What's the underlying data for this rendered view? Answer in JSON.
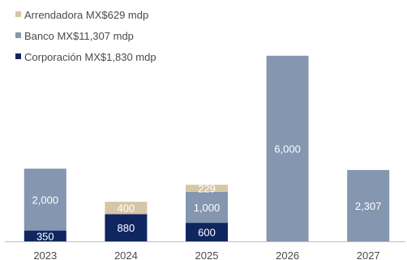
{
  "chart_data": {
    "type": "bar",
    "stacked": true,
    "title": "",
    "xlabel": "",
    "ylabel": "",
    "ylim": [
      0,
      6100
    ],
    "grid": false,
    "legend_position": "top-left",
    "categories": [
      "2023",
      "2024",
      "2025",
      "2026",
      "2027"
    ],
    "series": [
      {
        "name": "Corporación MX$1,830 mdp",
        "color": "#0f2660",
        "label_color": "#ffffff",
        "values": [
          350,
          880,
          600,
          null,
          null
        ],
        "labels": [
          "350",
          "880",
          "600",
          "",
          ""
        ]
      },
      {
        "name": "Banco MX$11,307 mdp",
        "color": "#8496b0",
        "label_color": "#ffffff",
        "values": [
          2000,
          null,
          1000,
          6000,
          2307
        ],
        "labels": [
          "2,000",
          "",
          "1,000",
          "6,000",
          "2,307"
        ]
      },
      {
        "name": "Arrendadora MX$629 mdp",
        "color": "#d6c6a4",
        "label_color": "#ffffff",
        "values": [
          null,
          400,
          229,
          null,
          null
        ],
        "labels": [
          "",
          "400",
          "229",
          "",
          ""
        ]
      }
    ],
    "legend_order": [
      2,
      1,
      0
    ]
  }
}
